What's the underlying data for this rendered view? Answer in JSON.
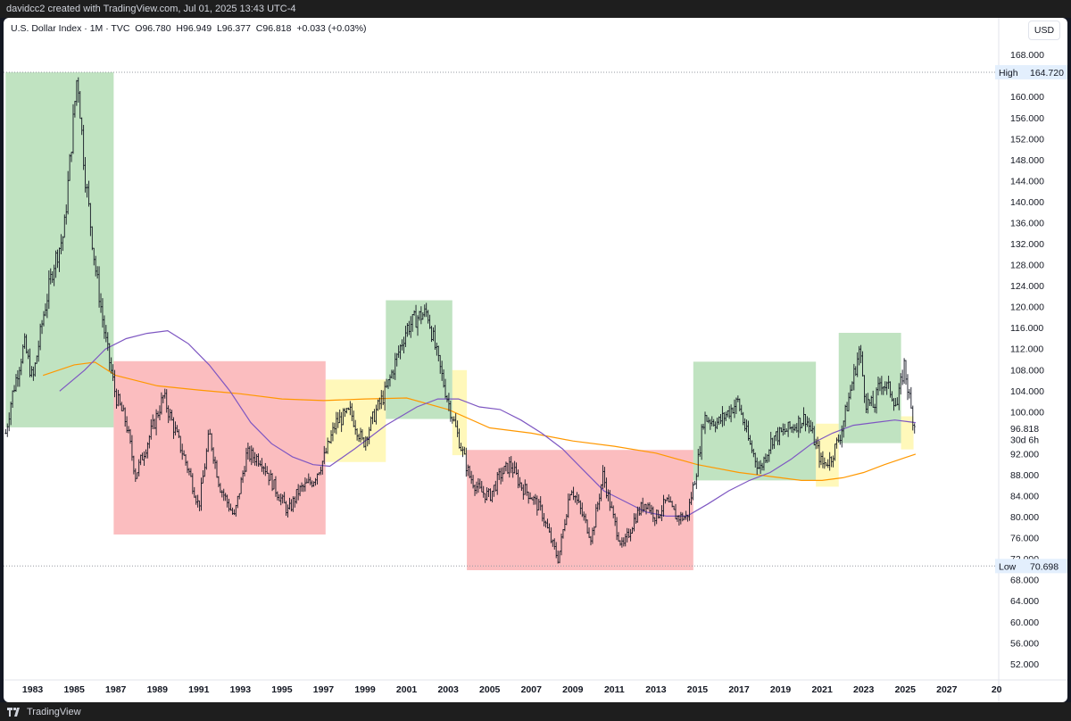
{
  "header": {
    "text": "davidcc2 created with TradingView.com, Jul 01, 2025 13:43 UTC-4"
  },
  "legend": {
    "symbol": "U.S. Dollar Index · 1M · TVC",
    "open": "O96.780",
    "high": "H96.949",
    "low": "L96.377",
    "close": "C96.818",
    "change": "+0.033 (+0.03%)"
  },
  "currency_button": "USD",
  "footer": {
    "brand": "TradingView"
  },
  "colors": {
    "candle": "#131722",
    "ma_long": "#7e57c2",
    "ma_mid": "#ff9800",
    "box_green": "#81c784",
    "box_red": "#f77c80",
    "box_yellow": "#fff176"
  },
  "chart_data": {
    "type": "candlestick",
    "title": "U.S. Dollar Index",
    "interval": "1M",
    "x_tick_labels": [
      "1983",
      "1985",
      "1987",
      "1989",
      "1991",
      "1993",
      "1995",
      "1997",
      "1999",
      "2001",
      "2003",
      "2005",
      "2007",
      "2009",
      "2011",
      "2013",
      "2015",
      "2017",
      "2019",
      "2021",
      "2023",
      "2025",
      "2027",
      "20"
    ],
    "y_tick_values": [
      52,
      56,
      60,
      64,
      68,
      72,
      76,
      80,
      84,
      88,
      92,
      96,
      100,
      104,
      108,
      112,
      116,
      120,
      124,
      128,
      132,
      136,
      140,
      144,
      148,
      152,
      156,
      160,
      164,
      168
    ],
    "ylim": [
      49,
      171
    ],
    "xlim": [
      1981.6,
      2029.5
    ],
    "markers": {
      "high_label": "High",
      "high_value": "164.720",
      "low_label": "Low",
      "low_value": "70.698",
      "last_value": "96.818",
      "countdown": "30d 6h"
    },
    "price_anchors": [
      [
        1981.7,
        96
      ],
      [
        1982.0,
        103
      ],
      [
        1982.6,
        113
      ],
      [
        1983.0,
        106
      ],
      [
        1983.5,
        118
      ],
      [
        1984.0,
        128
      ],
      [
        1984.5,
        134
      ],
      [
        1985.15,
        164.7
      ],
      [
        1985.5,
        146
      ],
      [
        1986.0,
        128
      ],
      [
        1986.5,
        114
      ],
      [
        1987.0,
        103
      ],
      [
        1987.5,
        98
      ],
      [
        1987.95,
        88
      ],
      [
        1988.5,
        94
      ],
      [
        1989.3,
        103
      ],
      [
        1989.8,
        97
      ],
      [
        1990.5,
        89
      ],
      [
        1991.0,
        82
      ],
      [
        1991.5,
        96
      ],
      [
        1992.0,
        86
      ],
      [
        1992.7,
        80
      ],
      [
        1993.3,
        92
      ],
      [
        1994.0,
        91
      ],
      [
        1994.6,
        86
      ],
      [
        1995.3,
        81
      ],
      [
        1995.8,
        85
      ],
      [
        1996.5,
        87
      ],
      [
        1997.0,
        91
      ],
      [
        1997.6,
        98
      ],
      [
        1998.3,
        100
      ],
      [
        1998.9,
        94
      ],
      [
        1999.5,
        100
      ],
      [
        2000.0,
        104
      ],
      [
        2000.5,
        110
      ],
      [
        2001.0,
        116
      ],
      [
        2001.5,
        118
      ],
      [
        2002.0,
        119
      ],
      [
        2002.5,
        110
      ],
      [
        2003.0,
        102
      ],
      [
        2003.5,
        95
      ],
      [
        2004.0,
        88
      ],
      [
        2004.5,
        85
      ],
      [
        2005.0,
        84
      ],
      [
        2005.5,
        88
      ],
      [
        2006.0,
        90
      ],
      [
        2006.5,
        86
      ],
      [
        2007.0,
        84
      ],
      [
        2007.5,
        81
      ],
      [
        2008.0,
        75
      ],
      [
        2008.3,
        72
      ],
      [
        2008.9,
        86
      ],
      [
        2009.5,
        80
      ],
      [
        2009.9,
        76
      ],
      [
        2010.45,
        88
      ],
      [
        2011.0,
        79
      ],
      [
        2011.4,
        74
      ],
      [
        2012.0,
        80
      ],
      [
        2012.5,
        83
      ],
      [
        2013.0,
        80
      ],
      [
        2013.5,
        83
      ],
      [
        2014.0,
        80
      ],
      [
        2014.5,
        80
      ],
      [
        2015.0,
        90
      ],
      [
        2015.3,
        99
      ],
      [
        2016.0,
        98
      ],
      [
        2016.95,
        102
      ],
      [
        2017.5,
        94
      ],
      [
        2018.0,
        89
      ],
      [
        2018.6,
        95
      ],
      [
        2019.5,
        97
      ],
      [
        2020.2,
        99
      ],
      [
        2020.5,
        96
      ],
      [
        2021.0,
        90
      ],
      [
        2021.4,
        91
      ],
      [
        2021.9,
        96
      ],
      [
        2022.3,
        103
      ],
      [
        2022.8,
        112
      ],
      [
        2023.1,
        102
      ],
      [
        2023.5,
        101
      ],
      [
        2023.8,
        106
      ],
      [
        2024.3,
        104
      ],
      [
        2024.6,
        101
      ],
      [
        2024.95,
        109
      ],
      [
        2025.3,
        100
      ],
      [
        2025.5,
        96.8
      ]
    ],
    "moving_averages": [
      {
        "color": "#ff9800",
        "points": [
          [
            1983.5,
            107
          ],
          [
            1985,
            109
          ],
          [
            1986,
            109.5
          ],
          [
            1987,
            107
          ],
          [
            1989,
            105
          ],
          [
            1991,
            104.2
          ],
          [
            1993,
            103.5
          ],
          [
            1995,
            102.5
          ],
          [
            1997,
            102.2
          ],
          [
            1999,
            102.5
          ],
          [
            2001,
            102.7
          ],
          [
            2003,
            100.5
          ],
          [
            2005,
            97
          ],
          [
            2007,
            96
          ],
          [
            2009,
            94.5
          ],
          [
            2011,
            93.5
          ],
          [
            2013,
            92.2
          ],
          [
            2015,
            90
          ],
          [
            2017,
            88.5
          ],
          [
            2019,
            87.5
          ],
          [
            2020,
            87
          ],
          [
            2021,
            87
          ],
          [
            2022,
            87.5
          ],
          [
            2023,
            88.5
          ],
          [
            2024,
            90
          ],
          [
            2025.5,
            92
          ]
        ]
      },
      {
        "color": "#7e57c2",
        "points": [
          [
            1984.3,
            104
          ],
          [
            1985.5,
            108
          ],
          [
            1986.5,
            112
          ],
          [
            1987.5,
            114
          ],
          [
            1988.5,
            115
          ],
          [
            1989.5,
            115.5
          ],
          [
            1990.5,
            113
          ],
          [
            1991.5,
            109
          ],
          [
            1992.5,
            104
          ],
          [
            1993.5,
            98
          ],
          [
            1994.5,
            94
          ],
          [
            1995.5,
            91.5
          ],
          [
            1996.5,
            90
          ],
          [
            1997.3,
            89.7
          ],
          [
            1998.5,
            93
          ],
          [
            2000,
            97.5
          ],
          [
            2001.5,
            101
          ],
          [
            2002.5,
            102.5
          ],
          [
            2003.5,
            102.5
          ],
          [
            2004.5,
            101
          ],
          [
            2005.5,
            100.5
          ],
          [
            2006.5,
            98.5
          ],
          [
            2007.5,
            96
          ],
          [
            2008.5,
            93
          ],
          [
            2009.5,
            89
          ],
          [
            2010.5,
            85
          ],
          [
            2011.5,
            83
          ],
          [
            2012.5,
            81
          ],
          [
            2013.5,
            80.2
          ],
          [
            2014.5,
            80.2
          ],
          [
            2015.5,
            82.5
          ],
          [
            2016.5,
            85
          ],
          [
            2017.5,
            87
          ],
          [
            2018.5,
            88.5
          ],
          [
            2019.5,
            91
          ],
          [
            2020.5,
            94
          ],
          [
            2021.5,
            96
          ],
          [
            2022.5,
            97.5
          ],
          [
            2023.5,
            98
          ],
          [
            2024.5,
            98.5
          ],
          [
            2025.5,
            98
          ]
        ]
      }
    ],
    "zones": [
      {
        "color": "green",
        "x0": 1981.7,
        "x1": 1986.9,
        "y0": 97.1,
        "y1": 164.7
      },
      {
        "color": "red",
        "x0": 1986.9,
        "x1": 1997.1,
        "y0": 76.7,
        "y1": 109.7
      },
      {
        "color": "yellow",
        "x0": 1997.1,
        "x1": 2000.0,
        "y0": 90.5,
        "y1": 106.2
      },
      {
        "color": "green",
        "x0": 2000.0,
        "x1": 2003.2,
        "y0": 98.7,
        "y1": 121.3
      },
      {
        "color": "yellow",
        "x0": 2003.2,
        "x1": 2003.9,
        "y0": 91.8,
        "y1": 108.0
      },
      {
        "color": "red",
        "x0": 2003.9,
        "x1": 2014.8,
        "y0": 69.9,
        "y1": 92.8
      },
      {
        "color": "green",
        "x0": 2014.8,
        "x1": 2020.7,
        "y0": 87.0,
        "y1": 109.6
      },
      {
        "color": "yellow",
        "x0": 2020.7,
        "x1": 2021.8,
        "y0": 85.8,
        "y1": 97.8
      },
      {
        "color": "green",
        "x0": 2021.8,
        "x1": 2024.8,
        "y0": 94.1,
        "y1": 115.1
      },
      {
        "color": "yellow",
        "x0": 2024.8,
        "x1": 2025.4,
        "y0": 92.9,
        "y1": 99.2
      }
    ]
  }
}
